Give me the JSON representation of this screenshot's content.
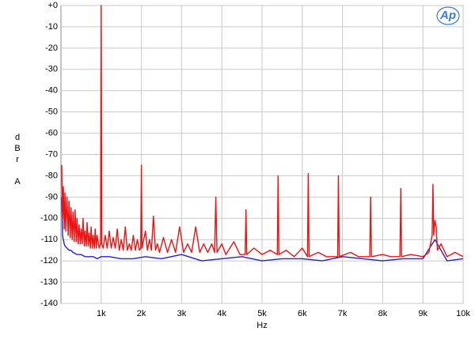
{
  "chart_data": {
    "type": "line",
    "logo": "Ap",
    "x_label": "Hz",
    "y_label": "dBr A",
    "xlim": [
      0,
      10000
    ],
    "ylim": [
      -140,
      0
    ],
    "grid": true,
    "xticks": [
      {
        "value": 1000,
        "label": "1k"
      },
      {
        "value": 2000,
        "label": "2k"
      },
      {
        "value": 3000,
        "label": "3k"
      },
      {
        "value": 4000,
        "label": "4k"
      },
      {
        "value": 5000,
        "label": "5k"
      },
      {
        "value": 6000,
        "label": "6k"
      },
      {
        "value": 7000,
        "label": "7k"
      },
      {
        "value": 8000,
        "label": "8k"
      },
      {
        "value": 9000,
        "label": "9k"
      },
      {
        "value": 10000,
        "label": "10k"
      }
    ],
    "yticks": [
      {
        "value": 0,
        "label": "+0"
      },
      -10,
      -20,
      -30,
      -40,
      -50,
      -60,
      -70,
      -80,
      -90,
      -100,
      -110,
      -120,
      -130,
      -140
    ],
    "series": [
      {
        "color": "#2222cc",
        "x": [
          20,
          40,
          60,
          80,
          100,
          150,
          200,
          250,
          300,
          400,
          500,
          600,
          700,
          800,
          900,
          1000,
          1200,
          1500,
          1800,
          2100,
          2500,
          3000,
          3500,
          4000,
          4500,
          5000,
          5500,
          6000,
          6500,
          7000,
          7500,
          8000,
          8500,
          9000,
          9300,
          9600,
          10000
        ],
        "values": [
          -90,
          -108,
          -110,
          -112,
          -113,
          -114,
          -115,
          -115,
          -116,
          -117,
          -117,
          -118,
          -118,
          -118,
          -119,
          -118,
          -118,
          -119,
          -119,
          -118,
          -119,
          -117,
          -120,
          -119,
          -118,
          -120,
          -119,
          -119,
          -120,
          -118,
          -119,
          -120,
          -119,
          -119,
          -110,
          -120,
          -119
        ]
      },
      {
        "color": "#ee1111",
        "x": [
          20,
          40,
          60,
          80,
          100,
          120,
          150,
          180,
          200,
          230,
          250,
          280,
          300,
          330,
          350,
          380,
          400,
          430,
          450,
          480,
          500,
          530,
          550,
          580,
          600,
          630,
          650,
          680,
          700,
          730,
          750,
          780,
          800,
          830,
          850,
          880,
          900,
          950,
          985,
          1000,
          1015,
          1050,
          1100,
          1150,
          1200,
          1250,
          1300,
          1350,
          1400,
          1450,
          1500,
          1550,
          1600,
          1650,
          1700,
          1750,
          1800,
          1850,
          1900,
          1950,
          1985,
          2000,
          2015,
          2100,
          2150,
          2200,
          2250,
          2300,
          2350,
          2400,
          2450,
          2550,
          2650,
          2750,
          2850,
          2950,
          3050,
          3150,
          3250,
          3350,
          3450,
          3550,
          3650,
          3750,
          3820,
          3850,
          3880,
          4000,
          4100,
          4300,
          4450,
          4580,
          4600,
          4620,
          4800,
          5000,
          5200,
          5380,
          5400,
          5420,
          5600,
          5800,
          6000,
          6130,
          6150,
          6170,
          6400,
          6600,
          6880,
          6900,
          6920,
          7200,
          7400,
          7680,
          7700,
          7720,
          8000,
          8200,
          8430,
          8450,
          8470,
          8700,
          9000,
          9150,
          9230,
          9250,
          9270,
          9300,
          9330,
          9360,
          9450,
          9600,
          9800,
          10000
        ],
        "values": [
          -75,
          -100,
          -85,
          -105,
          -88,
          -106,
          -90,
          -108,
          -92,
          -109,
          -95,
          -110,
          -97,
          -111,
          -96,
          -111,
          -100,
          -112,
          -103,
          -112,
          -105,
          -112,
          -100,
          -113,
          -106,
          -113,
          -102,
          -113,
          -107,
          -114,
          -104,
          -114,
          -108,
          -114,
          -105,
          -114,
          -108,
          -114,
          -112,
          0,
          -112,
          -114,
          -108,
          -114,
          -106,
          -114,
          -109,
          -114,
          -105,
          -115,
          -110,
          -115,
          -104,
          -115,
          -112,
          -115,
          -108,
          -115,
          -110,
          -115,
          -114,
          -75,
          -114,
          -106,
          -115,
          -110,
          -115,
          -99,
          -115,
          -112,
          -116,
          -109,
          -116,
          -110,
          -116,
          -104,
          -116,
          -112,
          -116,
          -104,
          -116,
          -112,
          -116,
          -112,
          -116,
          -90,
          -116,
          -112,
          -117,
          -111,
          -117,
          -117,
          -96,
          -117,
          -114,
          -117,
          -115,
          -117,
          -80,
          -117,
          -115,
          -118,
          -114,
          -118,
          -79,
          -118,
          -116,
          -118,
          -118,
          -80,
          -118,
          -116,
          -118,
          -118,
          -90,
          -118,
          -117,
          -118,
          -118,
          -86,
          -118,
          -117,
          -118,
          -116,
          -108,
          -84,
          -108,
          -101,
          -104,
          -115,
          -112,
          -118,
          -116,
          -118
        ]
      }
    ]
  }
}
